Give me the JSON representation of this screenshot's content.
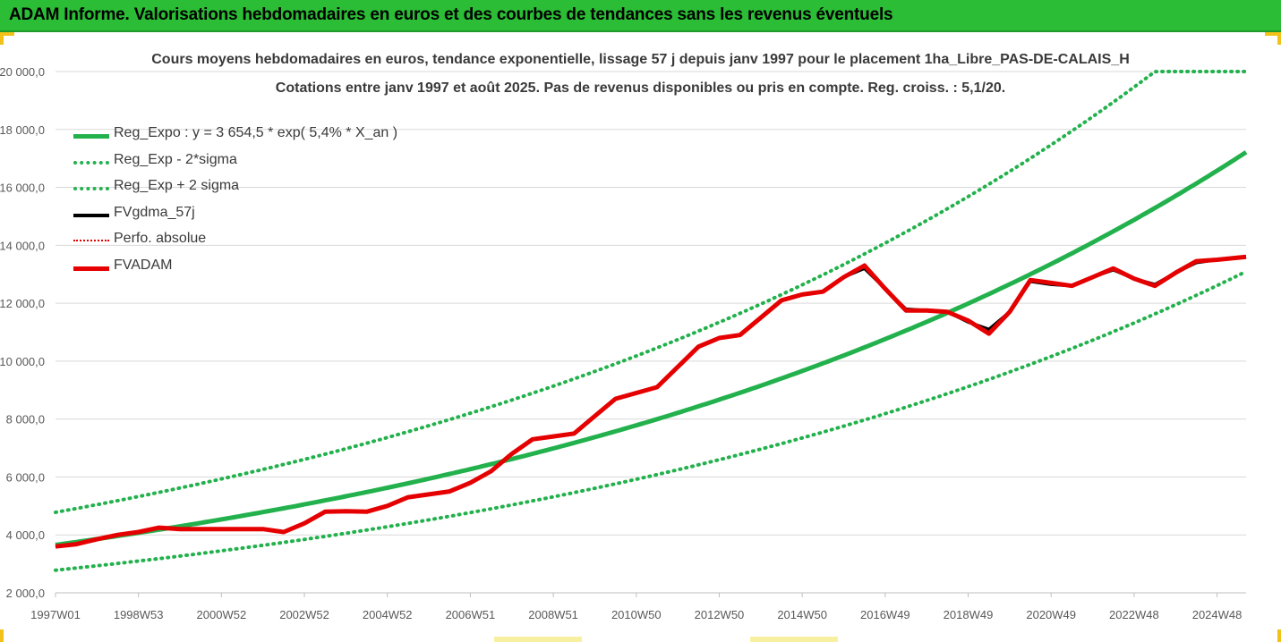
{
  "banner": {
    "title": "ADAM Informe. Valorisations hebdomadaires en euros et des courbes de tendances sans les revenus éventuels"
  },
  "colors": {
    "banner_bg": "#2bbd35",
    "corner_accent": "#f2c21b",
    "reg_expo": "#22b14c",
    "fvgdma": "#000000",
    "perfo": "#e00000",
    "fvadam": "#e60000",
    "grid": "#d9d9d9"
  },
  "chart_data": {
    "type": "line",
    "title": "Cours moyens hebdomadaires en euros, tendance exponentielle, lissage 57 j depuis janv 1997 pour le placement 1ha_Libre_PAS-DE-CALAIS_H",
    "subtitle": "Cotations entre janv 1997 et août 2025.  Pas de revenus disponibles ou pris en compte. Reg. croiss. : 5,1/20.",
    "xlabel": "",
    "ylabel": "",
    "x_tick_labels": [
      "1997W01",
      "1998W53",
      "2000W52",
      "2002W52",
      "2004W52",
      "2006W51",
      "2008W51",
      "2010W50",
      "2012W50",
      "2014W50",
      "2016W49",
      "2018W49",
      "2020W49",
      "2022W48",
      "2024W48"
    ],
    "x_tick_years": [
      1997,
      1999,
      2001,
      2003,
      2005,
      2007,
      2009,
      2011,
      2013,
      2015,
      2017,
      2019,
      2021,
      2023,
      2025
    ],
    "xlim": [
      1997.0,
      2025.7
    ],
    "y_tick_labels": [
      "2 000,0",
      "4 000,0",
      "6 000,0",
      "8 000,0",
      "10 000,0",
      "12 000,0",
      "14 000,0",
      "16 000,0",
      "18 000,0",
      "20 000,0"
    ],
    "ylim": [
      2000,
      20000
    ],
    "y_tick_step": 2000,
    "grid": "horizontal",
    "legend_position": "top-left",
    "series": [
      {
        "name": "Reg_Expo : y = 3 654,5 * exp( 5,4% *  X_an )",
        "style": "solid-thick",
        "color": "#22b14c",
        "formula": {
          "a": 3654.5,
          "r": 0.054
        }
      },
      {
        "name": "Reg_Exp - 2*sigma",
        "style": "dotted",
        "color": "#22b14c",
        "formula": {
          "a": 2780,
          "r": 0.054
        }
      },
      {
        "name": "Reg_Exp + 2 sigma",
        "style": "dotted",
        "color": "#22b14c",
        "formula": {
          "a": 4780,
          "r": 0.054,
          "cap": 20000
        }
      },
      {
        "name": "FVgdma_57j",
        "style": "solid",
        "color": "#000000",
        "x": [
          1997.0,
          1997.5,
          1998.0,
          1998.5,
          1999.0,
          1999.5,
          2000.0,
          2001.0,
          2002.0,
          2002.5,
          2003.0,
          2003.5,
          2004.0,
          2004.5,
          2005.0,
          2005.5,
          2006.0,
          2006.5,
          2007.0,
          2007.5,
          2008.0,
          2008.5,
          2009.0,
          2009.5,
          2010.0,
          2010.5,
          2011.0,
          2011.5,
          2012.0,
          2012.5,
          2013.0,
          2013.5,
          2014.0,
          2014.5,
          2015.0,
          2015.5,
          2016.0,
          2016.5,
          2017.0,
          2017.5,
          2018.0,
          2018.5,
          2019.0,
          2019.5,
          2020.0,
          2020.5,
          2021.0,
          2021.5,
          2022.0,
          2022.5,
          2023.0,
          2023.5,
          2024.0,
          2024.5,
          2025.0,
          2025.7
        ],
        "y": [
          3600,
          3680,
          3850,
          4000,
          4100,
          4250,
          4200,
          4200,
          4200,
          4100,
          4400,
          4800,
          4820,
          4800,
          5000,
          5300,
          5400,
          5500,
          5800,
          6200,
          6800,
          7300,
          7400,
          7500,
          8100,
          8700,
          8900,
          9100,
          9800,
          10500,
          10800,
          10900,
          11500,
          12100,
          12300,
          12400,
          12900,
          13200,
          12500,
          11800,
          11750,
          11700,
          11350,
          11100,
          11700,
          12750,
          12650,
          12600,
          12900,
          13150,
          12850,
          12650,
          13050,
          13400,
          13500,
          13600
        ]
      },
      {
        "name": "Perfo. absolue",
        "style": "dotted",
        "color": "#e00000",
        "x": [
          1997.0,
          1997.5,
          1998.0,
          1998.5,
          1999.0,
          1999.5,
          2000.0,
          2001.0,
          2002.0,
          2002.5,
          2003.0,
          2003.5,
          2004.0,
          2004.5,
          2005.0,
          2005.5,
          2006.0,
          2006.5,
          2007.0,
          2007.5,
          2008.0,
          2008.5,
          2009.0,
          2009.5,
          2010.0,
          2010.5,
          2011.0,
          2011.5,
          2012.0,
          2012.5,
          2013.0,
          2013.5,
          2014.0,
          2014.5,
          2015.0,
          2015.5,
          2016.0,
          2016.5,
          2017.0,
          2017.5,
          2018.0,
          2018.5,
          2019.0,
          2019.5,
          2020.0,
          2020.5,
          2021.0,
          2021.5,
          2022.0,
          2022.5,
          2023.0,
          2023.5,
          2024.0,
          2024.5,
          2025.0,
          2025.7
        ],
        "y": [
          3600,
          3680,
          3850,
          4000,
          4100,
          4250,
          4200,
          4200,
          4200,
          4100,
          4400,
          4800,
          4820,
          4800,
          5000,
          5300,
          5400,
          5500,
          5800,
          6200,
          6800,
          7300,
          7400,
          7500,
          8100,
          8700,
          8900,
          9100,
          9800,
          10500,
          10800,
          10900,
          11500,
          12100,
          12300,
          12400,
          12900,
          13300,
          12500,
          11750,
          11750,
          11700,
          11400,
          10950,
          11700,
          12800,
          12700,
          12600,
          12900,
          13200,
          12850,
          12600,
          13050,
          13450,
          13500,
          13600
        ]
      },
      {
        "name": "FVADAM",
        "style": "solid-thick",
        "color": "#e60000",
        "x": [
          1997.0,
          1997.5,
          1998.0,
          1998.5,
          1999.0,
          1999.5,
          2000.0,
          2001.0,
          2002.0,
          2002.5,
          2003.0,
          2003.5,
          2004.0,
          2004.5,
          2005.0,
          2005.5,
          2006.0,
          2006.5,
          2007.0,
          2007.5,
          2008.0,
          2008.5,
          2009.0,
          2009.5,
          2010.0,
          2010.5,
          2011.0,
          2011.5,
          2012.0,
          2012.5,
          2013.0,
          2013.5,
          2014.0,
          2014.5,
          2015.0,
          2015.5,
          2016.0,
          2016.5,
          2017.0,
          2017.5,
          2018.0,
          2018.5,
          2019.0,
          2019.5,
          2020.0,
          2020.5,
          2021.0,
          2021.5,
          2022.0,
          2022.5,
          2023.0,
          2023.5,
          2024.0,
          2024.5,
          2025.0,
          2025.7
        ],
        "y": [
          3600,
          3680,
          3850,
          4000,
          4100,
          4250,
          4200,
          4200,
          4200,
          4100,
          4400,
          4800,
          4820,
          4800,
          5000,
          5300,
          5400,
          5500,
          5800,
          6200,
          6800,
          7300,
          7400,
          7500,
          8100,
          8700,
          8900,
          9100,
          9800,
          10500,
          10800,
          10900,
          11500,
          12100,
          12300,
          12400,
          12900,
          13300,
          12500,
          11750,
          11750,
          11700,
          11400,
          10950,
          11700,
          12800,
          12700,
          12600,
          12900,
          13200,
          12850,
          12600,
          13050,
          13450,
          13500,
          13600
        ]
      }
    ]
  }
}
